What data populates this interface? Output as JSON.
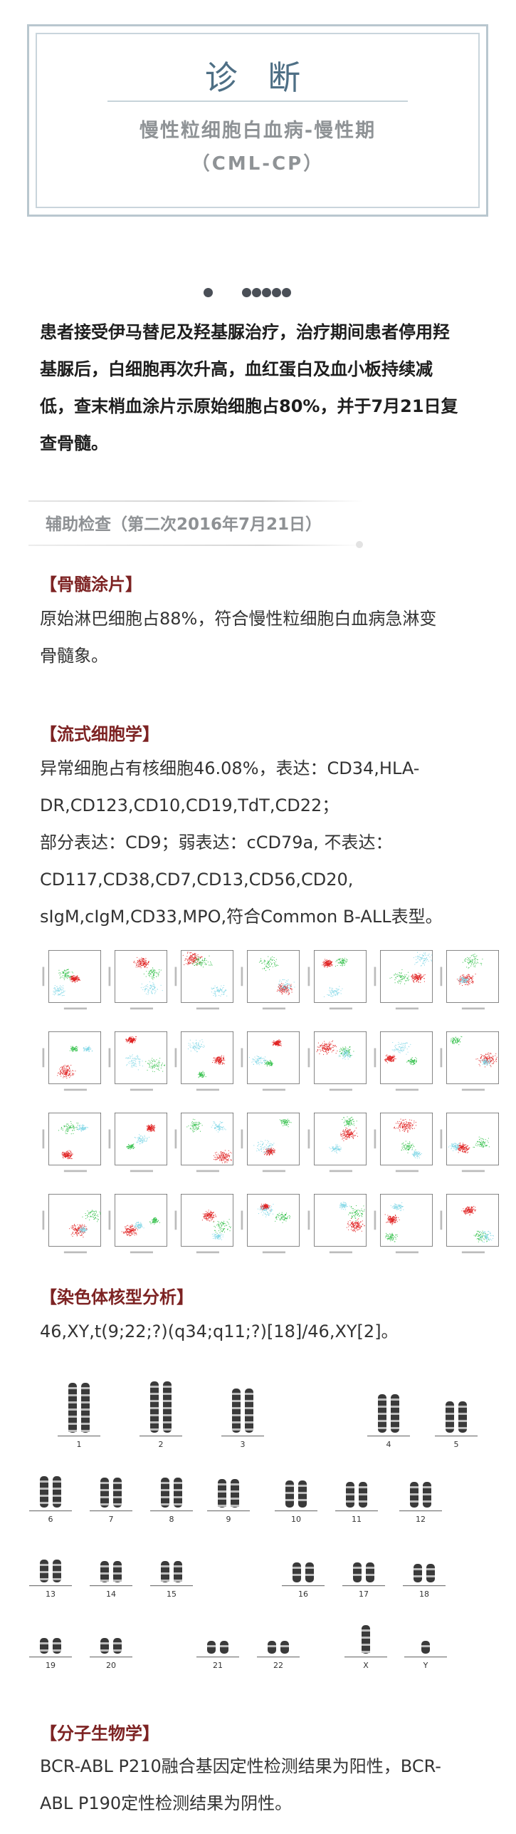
{
  "diagnosis": {
    "title": "诊 断",
    "subtitle_line1": "慢性粒细胞白血病-慢性期",
    "subtitle_line2": "（CML-CP）"
  },
  "intro": {
    "lines": [
      "患者接受伊马替尼及羟基脲治疗，治疗期间患者停用羟",
      "基脲后，白细胞再次升高，血红蛋白及血小板持续减",
      "低，查末梢血涂片示原始细胞占80%，并于7月21日复",
      "查骨髓。"
    ]
  },
  "aux_exam": {
    "title": "辅助检查（第二次2016年7月21日）"
  },
  "bone_marrow": {
    "heading": "【骨髓涂片】",
    "lines": [
      "原始淋巴细胞占88%，符合慢性粒细胞白血病急淋变",
      "骨髓象。"
    ]
  },
  "flow": {
    "heading": "【流式细胞学】",
    "lines": [
      "异常细胞占有核细胞46.08%，表达：CD34,HLA-",
      "DR,CD123,CD10,CD19,TdT,CD22；",
      "部分表达：CD9；弱表达：cCD79a,              不表达：",
      "CD117,CD38,CD7,CD13,CD56,CD20,",
      "sIgM,cIgM,CD33,MPO,符合Common B-ALL表型。"
    ]
  },
  "karyotype": {
    "heading": "【染色体核型分析】",
    "result": "46,XY,t(9;22;?)(q34;q11;?)[18]/46,XY[2]。",
    "chromosome_labels": [
      "1",
      "2",
      "3",
      "4",
      "5",
      "6",
      "7",
      "8",
      "9",
      "10",
      "11",
      "12",
      "13",
      "14",
      "15",
      "16",
      "17",
      "18",
      "19",
      "20",
      "21",
      "22",
      "X",
      "Y"
    ]
  },
  "molecular": {
    "heading": "【分子生物学】",
    "lines": [
      "BCR-ABL     P210融合基因定性检测结果为阳性，BCR-",
      "ABL P190定性检测结果为阴性。"
    ]
  }
}
